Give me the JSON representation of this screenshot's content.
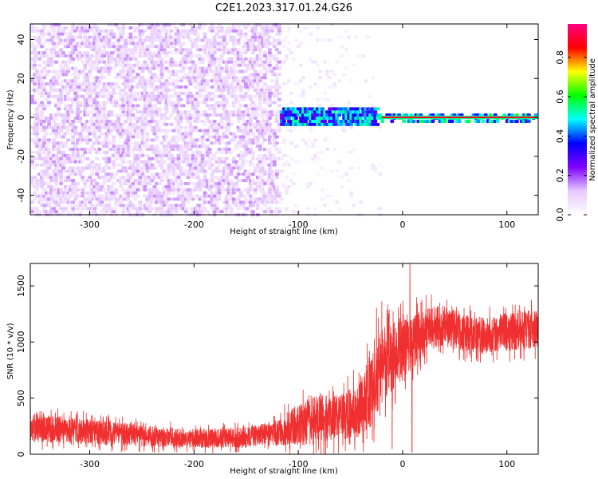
{
  "title": "C2E1.2023.317.01.24.G26",
  "chart_data": [
    {
      "type": "heatmap",
      "title": "C2E1.2023.317.01.24.G26",
      "xlabel": "Height of straight line (km)",
      "ylabel": "Frequency (Hz)",
      "xlim": [
        -357,
        130
      ],
      "ylim": [
        -50,
        48
      ],
      "x_ticks": [
        -300,
        -200,
        -100,
        0,
        100
      ],
      "y_ticks": [
        -40,
        -20,
        0,
        20,
        40
      ],
      "grid": false,
      "colorbar": {
        "label": "Normalized spectral amplitude",
        "range": [
          0.0,
          0.97
        ],
        "ticks": [
          0.0,
          0.2,
          0.4,
          0.6,
          0.8
        ],
        "colormap": [
          "#ffffff",
          "#e6c8ff",
          "#8000ff",
          "#0000ff",
          "#00ffff",
          "#00ff00",
          "#ffff00",
          "#ff0000",
          "#ff0080"
        ]
      },
      "regions": [
        {
          "x_range": [
            -357,
            -120
          ],
          "freq_range": [
            -50,
            48
          ],
          "amplitude": 0.1,
          "description": "broadband purple noise"
        },
        {
          "x_range": [
            -120,
            -20
          ],
          "freq_range": [
            -50,
            48
          ],
          "amplitude": 0.03,
          "description": "sparse light noise"
        },
        {
          "x_range": [
            -120,
            -25
          ],
          "freq_range": [
            -5,
            6
          ],
          "amplitude": 0.45,
          "description": "blue/cyan signal band"
        },
        {
          "x_range": [
            -25,
            130
          ],
          "freq_range": [
            -1,
            1
          ],
          "amplitude": 0.9,
          "description": "narrow red carrier line"
        }
      ]
    },
    {
      "type": "line",
      "xlabel": "Height of straight line (km)",
      "ylabel": "SNR (10 * v/v)",
      "xlim": [
        -357,
        130
      ],
      "ylim": [
        0,
        1700
      ],
      "x_ticks": [
        -300,
        -200,
        -100,
        0,
        100
      ],
      "y_ticks": [
        0,
        500,
        1000,
        1500
      ],
      "grid": false,
      "series": [
        {
          "color": "#f03030",
          "points": [
            {
              "x": -357,
              "mean": 240,
              "amp": 130
            },
            {
              "x": -300,
              "mean": 200,
              "amp": 110
            },
            {
              "x": -250,
              "mean": 165,
              "amp": 95
            },
            {
              "x": -200,
              "mean": 140,
              "amp": 85
            },
            {
              "x": -150,
              "mean": 150,
              "amp": 90
            },
            {
              "x": -120,
              "mean": 195,
              "amp": 120
            },
            {
              "x": -100,
              "mean": 270,
              "amp": 190
            },
            {
              "x": -80,
              "mean": 310,
              "amp": 220
            },
            {
              "x": -60,
              "mean": 330,
              "amp": 200
            },
            {
              "x": -45,
              "mean": 380,
              "amp": 250
            },
            {
              "x": -30,
              "mean": 560,
              "amp": 320
            },
            {
              "x": -20,
              "mean": 820,
              "amp": 350
            },
            {
              "x": -10,
              "mean": 880,
              "amp": 320
            },
            {
              "x": 0,
              "mean": 950,
              "amp": 300
            },
            {
              "x": 10,
              "mean": 1000,
              "amp": 250
            },
            {
              "x": 20,
              "mean": 1100,
              "amp": 200
            },
            {
              "x": 40,
              "mean": 1150,
              "amp": 180
            },
            {
              "x": 60,
              "mean": 1080,
              "amp": 160
            },
            {
              "x": 80,
              "mean": 1060,
              "amp": 160
            },
            {
              "x": 100,
              "mean": 1090,
              "amp": 170
            },
            {
              "x": 130,
              "mean": 1120,
              "amp": 180
            }
          ],
          "spikes": [
            {
              "x": -25,
              "value": 1300
            },
            {
              "x": -10,
              "value": 50
            },
            {
              "x": 7,
              "value": 1700
            },
            {
              "x": 9,
              "value": 20
            }
          ]
        }
      ]
    }
  ]
}
